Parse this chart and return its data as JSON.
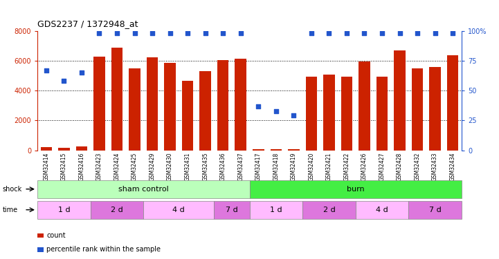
{
  "title": "GDS2237 / 1372948_at",
  "samples": [
    "GSM32414",
    "GSM32415",
    "GSM32416",
    "GSM32423",
    "GSM32424",
    "GSM32425",
    "GSM32429",
    "GSM32430",
    "GSM32431",
    "GSM32435",
    "GSM32436",
    "GSM32437",
    "GSM32417",
    "GSM32418",
    "GSM32419",
    "GSM32420",
    "GSM32421",
    "GSM32422",
    "GSM32426",
    "GSM32427",
    "GSM32428",
    "GSM32432",
    "GSM32433",
    "GSM32434"
  ],
  "counts": [
    200,
    150,
    250,
    6300,
    6900,
    5500,
    6250,
    5850,
    4650,
    5300,
    6050,
    6150,
    80,
    50,
    60,
    4950,
    5100,
    4950,
    5950,
    4950,
    6700,
    5500,
    5600,
    6400
  ],
  "percentiles": [
    67,
    58,
    65,
    98,
    98,
    98,
    98,
    98,
    98,
    98,
    98,
    98,
    37,
    33,
    29,
    98,
    98,
    98,
    98,
    98,
    98,
    98,
    98,
    98
  ],
  "ylim_left": [
    0,
    8000
  ],
  "ylim_right": [
    0,
    100
  ],
  "yticks_left": [
    0,
    2000,
    4000,
    6000,
    8000
  ],
  "yticks_right": [
    0,
    25,
    50,
    75,
    100
  ],
  "bar_color": "#cc2200",
  "dot_color": "#2255cc",
  "shock_groups": [
    {
      "label": "sham control",
      "start": 0,
      "end": 11,
      "color": "#bbffbb"
    },
    {
      "label": "burn",
      "start": 12,
      "end": 23,
      "color": "#44ee44"
    }
  ],
  "time_groups": [
    {
      "label": "1 d",
      "start": 0,
      "end": 2,
      "color": "#ffbbff"
    },
    {
      "label": "2 d",
      "start": 3,
      "end": 5,
      "color": "#dd77dd"
    },
    {
      "label": "4 d",
      "start": 6,
      "end": 9,
      "color": "#ffbbff"
    },
    {
      "label": "7 d",
      "start": 10,
      "end": 11,
      "color": "#dd77dd"
    },
    {
      "label": "1 d",
      "start": 12,
      "end": 14,
      "color": "#ffbbff"
    },
    {
      "label": "2 d",
      "start": 15,
      "end": 17,
      "color": "#dd77dd"
    },
    {
      "label": "4 d",
      "start": 18,
      "end": 20,
      "color": "#ffbbff"
    },
    {
      "label": "7 d",
      "start": 21,
      "end": 23,
      "color": "#dd77dd"
    }
  ],
  "legend_items": [
    {
      "label": "count",
      "color": "#cc2200"
    },
    {
      "label": "percentile rank within the sample",
      "color": "#2255cc"
    }
  ],
  "left_axis_color": "#cc2200",
  "right_axis_color": "#2255cc",
  "fig_width": 7.21,
  "fig_height": 3.75,
  "dpi": 100
}
